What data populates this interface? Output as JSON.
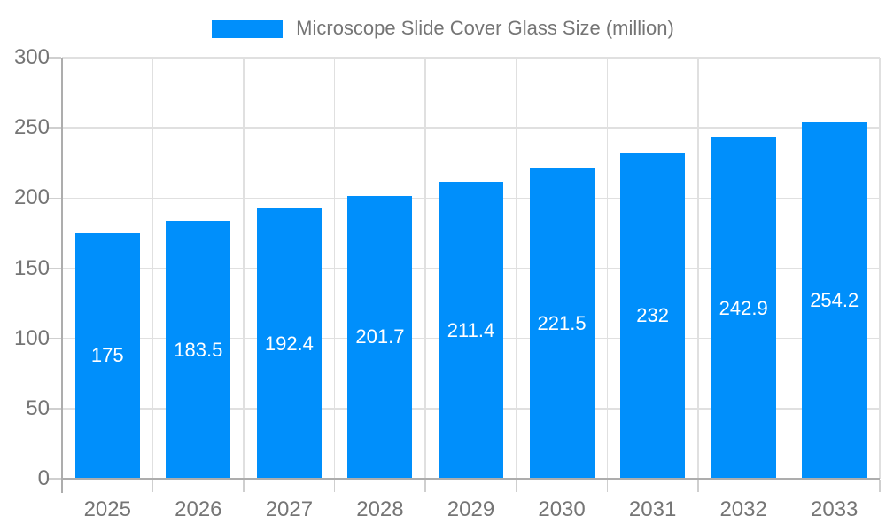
{
  "chart_data": {
    "type": "bar",
    "title": "Microscope Slide Cover Glass Size (million)",
    "categories": [
      "2025",
      "2026",
      "2027",
      "2028",
      "2029",
      "2030",
      "2031",
      "2032",
      "2033"
    ],
    "series": [
      {
        "name": "Microscope Slide Cover Glass Size (million)",
        "values": [
          175,
          183.5,
          192.4,
          201.7,
          211.4,
          221.5,
          232,
          242.9,
          254.2
        ]
      }
    ],
    "xlabel": "",
    "ylabel": "",
    "ylim": [
      0,
      300
    ],
    "yticks": [
      0,
      50,
      100,
      150,
      200,
      250,
      300
    ],
    "grid": true,
    "legend_position": "top",
    "value_label_position": "inside-center",
    "colors": {
      "bar": "#008FFB",
      "value_label": "#ffffff",
      "axis_text": "#757575",
      "legend_text": "#757575",
      "grid_line": "#e0e0e0",
      "axis_line": "#adadad",
      "tick_line": "#cfcfcf",
      "background": "#ffffff"
    }
  }
}
